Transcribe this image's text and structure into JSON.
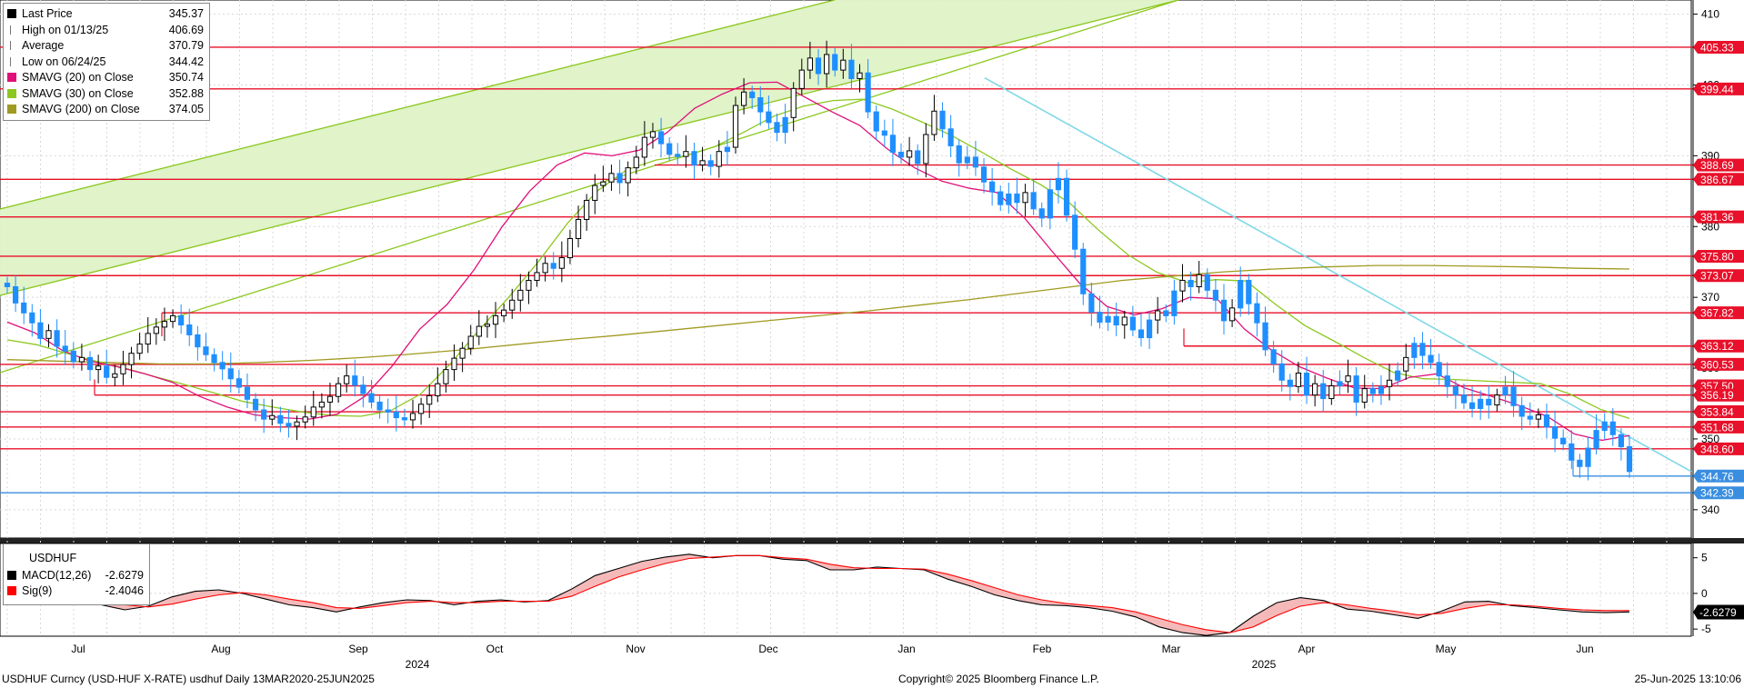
{
  "legend": {
    "items": [
      {
        "label": "Last Price",
        "value": "345.37",
        "swatch": "#000000",
        "marker": "box"
      },
      {
        "label": "High on 01/13/25",
        "value": "406.69",
        "swatch": "#777777",
        "marker": "high"
      },
      {
        "label": "Average",
        "value": "370.79",
        "swatch": "#777777",
        "marker": "avg"
      },
      {
        "label": "Low on 06/24/25",
        "value": "344.42",
        "swatch": "#777777",
        "marker": "low"
      },
      {
        "label": "SMAVG (20)  on Close",
        "value": "350.74",
        "swatch": "#e0107a",
        "marker": "box"
      },
      {
        "label": "SMAVG (30)  on Close",
        "value": "352.88",
        "swatch": "#8cc820",
        "marker": "box"
      },
      {
        "label": "SMAVG (200)  on Close",
        "value": "374.05",
        "swatch": "#a09a20",
        "marker": "box"
      }
    ]
  },
  "macd_legend": {
    "title": "USDHUF",
    "items": [
      {
        "label": "MACD(12,26)",
        "value": "-2.6279",
        "swatch": "#000000"
      },
      {
        "label": "Sig(9)",
        "value": "-2.4046",
        "swatch": "#ff0000"
      }
    ]
  },
  "footer": {
    "left": "USDHUF Curncy (USD-HUF X-RATE) usdhuf  Daily 13MAR2020-25JUN2025",
    "center": "Copyright© 2025 Bloomberg Finance L.P.",
    "right": "25-Jun-2025 13:10:06"
  },
  "colors": {
    "up": "#000000",
    "down": "#1f8fff",
    "hline": "#e8102a",
    "sma20": "#e0107a",
    "sma30": "#8cc820",
    "sma200": "#a09a20",
    "channel_fill": "#dff2c8",
    "channel_line": "#8cc820",
    "trend": "#7fd8e6",
    "support": "#3a8ee0",
    "macd": "#000000",
    "signal": "#ff0000"
  },
  "chart_data": {
    "type": "candlestick",
    "ylim": [
      336,
      412
    ],
    "y_ticks": [
      340,
      350,
      360,
      370,
      380,
      390,
      400,
      410
    ],
    "x_month_labels": [
      "Jul",
      "Aug",
      "Sep",
      "Oct",
      "Nov",
      "Dec",
      "Jan",
      "Feb",
      "Mar",
      "Apr",
      "May",
      "Jun"
    ],
    "x_year_labels": [
      "2024",
      "2025"
    ],
    "horizontal_levels": [
      {
        "value": 405.33,
        "label": "405.33",
        "color": "#e8102a"
      },
      {
        "value": 399.44,
        "label": "399.44",
        "color": "#e8102a"
      },
      {
        "value": 388.69,
        "label": "388.69",
        "color": "#e8102a"
      },
      {
        "value": 386.67,
        "label": "386.67",
        "color": "#e8102a"
      },
      {
        "value": 381.36,
        "label": "381.36",
        "color": "#e8102a"
      },
      {
        "value": 375.8,
        "label": "375.80",
        "color": "#e8102a"
      },
      {
        "value": 373.07,
        "label": "373.07",
        "color": "#e8102a"
      },
      {
        "value": 367.82,
        "label": "367.82",
        "color": "#e8102a"
      },
      {
        "value": 363.12,
        "label": "363.12",
        "color": "#e8102a"
      },
      {
        "value": 360.53,
        "label": "360.53",
        "color": "#e8102a"
      },
      {
        "value": 357.5,
        "label": "357.50",
        "color": "#e8102a"
      },
      {
        "value": 356.19,
        "label": "356.19",
        "color": "#e8102a"
      },
      {
        "value": 353.84,
        "label": "353.84",
        "color": "#e8102a"
      },
      {
        "value": 351.68,
        "label": "351.68",
        "color": "#e8102a"
      },
      {
        "value": 348.6,
        "label": "348.60",
        "color": "#e8102a"
      },
      {
        "value": 344.76,
        "label": "344.76",
        "color": "#3a8ee0"
      },
      {
        "value": 342.39,
        "label": "342.39",
        "color": "#3a8ee0"
      }
    ],
    "close_series": [
      371.5,
      369.2,
      367.8,
      366.4,
      364.2,
      365.3,
      363.1,
      362.4,
      360.9,
      361.5,
      359.8,
      360.3,
      358.7,
      359.2,
      360.5,
      362.1,
      363.4,
      364.9,
      365.8,
      366.6,
      367.4,
      366.1,
      364.7,
      363.0,
      361.9,
      360.8,
      359.9,
      358.5,
      357.3,
      355.6,
      354.1,
      352.8,
      353.3,
      352.2,
      351.8,
      352.4,
      353.1,
      354.5,
      355.2,
      356.0,
      357.8,
      358.9,
      357.6,
      356.4,
      355.2,
      354.1,
      353.8,
      353.0,
      352.7,
      353.6,
      354.9,
      356.1,
      357.8,
      359.8,
      361.4,
      362.8,
      364.5,
      365.9,
      366.2,
      367.4,
      368.2,
      369.6,
      371.0,
      372.4,
      373.5,
      374.8,
      374.1,
      375.6,
      378.3,
      381.0,
      383.7,
      385.8,
      386.3,
      387.5,
      386.2,
      388.3,
      389.8,
      392.6,
      393.4,
      391.7,
      390.2,
      389.9,
      390.6,
      388.7,
      389.3,
      388.5,
      390.6,
      391.2,
      397.1,
      399.0,
      398.2,
      396.2,
      394.7,
      393.3,
      395.4,
      399.5,
      402.1,
      403.8,
      401.6,
      404.3,
      402.1,
      403.5,
      400.9,
      401.7,
      396.2,
      393.5,
      392.9,
      390.5,
      389.8,
      390.7,
      388.9,
      393.0,
      396.3,
      393.8,
      391.4,
      389.0,
      389.8,
      388.4,
      386.3,
      384.9,
      383.1,
      384.6,
      383.4,
      384.8,
      382.5,
      381.2,
      385.2,
      386.8,
      381.6,
      376.8,
      370.5,
      367.9,
      366.5,
      367.3,
      366.1,
      367.2,
      365.4,
      364.3,
      366.8,
      368.1,
      367.4,
      370.9,
      372.4,
      371.5,
      373.2,
      371.0,
      369.6,
      366.7,
      368.5,
      372.4,
      369.1,
      366.4,
      362.6,
      360.6,
      358.3,
      357.4,
      359.3,
      356.2,
      357.8,
      355.7,
      357.5,
      358.1,
      358.9,
      355.2,
      357.1,
      356.4,
      357.4,
      358.3,
      359.6,
      361.5,
      363.5,
      361.8,
      360.8,
      358.9,
      357.4,
      356.2,
      355.1,
      354.3,
      355.6,
      354.8,
      356.2,
      357.3,
      354.7,
      353.2,
      352.8,
      353.4,
      351.7,
      350.1,
      349.3,
      347.0,
      346.1,
      348.7,
      351.2,
      352.4,
      350.6,
      348.9,
      345.4
    ],
    "candles_down_indices": [
      1,
      3,
      6,
      8,
      10,
      12,
      21,
      22,
      23,
      24,
      25,
      27,
      28,
      29,
      30,
      31,
      33,
      34,
      42,
      43,
      44,
      45,
      46,
      47,
      48,
      66,
      74,
      79,
      80,
      81,
      83,
      85,
      87,
      92,
      93,
      94,
      98,
      100,
      102,
      104,
      105,
      106,
      107,
      108,
      110,
      113,
      114,
      115,
      116,
      118,
      119,
      120,
      121,
      122,
      124,
      126,
      127,
      128,
      130,
      131,
      132,
      133,
      134,
      136,
      138,
      141,
      146,
      147,
      149,
      150,
      151,
      152,
      153,
      155,
      157,
      161,
      165,
      166,
      168,
      170,
      171,
      172,
      173,
      174,
      175,
      176,
      177,
      178,
      179,
      181,
      182,
      183,
      184,
      186,
      189,
      190,
      191,
      192,
      193,
      197,
      198,
      199,
      201,
      202,
      203,
      204,
      205,
      206,
      208,
      209,
      210,
      211
    ],
    "sma200_series": [
      361.2,
      361.0,
      360.8,
      360.6,
      360.6,
      360.8,
      361.1,
      361.5,
      362.0,
      362.6,
      363.3,
      364.0,
      364.6,
      365.3,
      366.0,
      366.7,
      367.4,
      368.1,
      368.9,
      369.7,
      370.6,
      371.5,
      372.4,
      373.0,
      373.6,
      374.0,
      374.3,
      374.5,
      374.5,
      374.4,
      374.3,
      374.1,
      374.0
    ],
    "sma20_series": [
      366.5,
      365.0,
      362.5,
      361.0,
      360.2,
      359.2,
      358.0,
      356.0,
      354.5,
      353.4,
      353.0,
      352.8,
      353.5,
      356.0,
      360.3,
      365.5,
      369.0,
      374.0,
      380.0,
      385.0,
      388.7,
      390.4,
      390.0,
      390.8,
      393.3,
      396.7,
      398.7,
      400.3,
      400.4,
      398.3,
      396.2,
      394.3,
      391.0,
      388.3,
      386.4,
      385.4,
      384.8,
      381.2,
      376.5,
      372.0,
      368.7,
      367.5,
      368.4,
      370.0,
      369.8,
      365.5,
      362.5,
      360.2,
      358.6,
      357.2,
      357.1,
      358.7,
      359.2,
      357.2,
      356.0,
      354.7,
      353.2,
      350.7,
      349.8,
      350.5
    ],
    "sma30_series": [
      364.0,
      363.3,
      362.1,
      361.0,
      360.0,
      358.8,
      357.7,
      356.5,
      355.3,
      354.5,
      353.8,
      353.3,
      353.2,
      354.0,
      356.3,
      360.5,
      365.4,
      370.0,
      375.0,
      380.5,
      385.0,
      388.0,
      389.4,
      390.0,
      391.3,
      393.4,
      395.6,
      397.0,
      397.8,
      398.0,
      396.6,
      394.8,
      392.9,
      390.6,
      388.2,
      386.0,
      383.4,
      379.5,
      376.0,
      373.5,
      372.1,
      372.5,
      372.3,
      369.0,
      366.0,
      363.8,
      361.5,
      359.4,
      358.5,
      358.4,
      358.2,
      358.0,
      357.8,
      356.3,
      354.2,
      352.9
    ],
    "macd_ylim": [
      -6,
      7
    ],
    "macd_ticks": [
      5,
      0,
      -5
    ],
    "macd_series": [
      -1.4,
      -1.0,
      -0.4,
      -0.6,
      -1.6,
      -2.3,
      -1.8,
      -0.5,
      0.3,
      0.5,
      0.0,
      -0.8,
      -1.6,
      -2.0,
      -2.6,
      -1.9,
      -1.3,
      -0.9,
      -1.0,
      -1.6,
      -1.1,
      -0.9,
      -1.2,
      -1.0,
      0.6,
      2.5,
      3.5,
      4.5,
      5.1,
      5.5,
      5.0,
      5.3,
      5.3,
      4.8,
      4.6,
      3.3,
      3.3,
      3.7,
      3.5,
      3.3,
      2.0,
      1.0,
      -0.2,
      -1.0,
      -1.6,
      -1.7,
      -2.0,
      -2.5,
      -3.3,
      -4.7,
      -5.5,
      -5.9,
      -5.5,
      -3.2,
      -1.3,
      -0.6,
      -1.0,
      -2.2,
      -2.5,
      -3.0,
      -3.5,
      -2.5,
      -1.2,
      -1.1,
      -1.7,
      -2.0,
      -2.3,
      -2.6,
      -2.7,
      -2.6
    ],
    "macd_signal_series": [
      -1.2,
      -1.2,
      -0.9,
      -0.8,
      -1.1,
      -1.6,
      -1.9,
      -1.5,
      -0.8,
      -0.2,
      0.1,
      -0.2,
      -0.8,
      -1.3,
      -2.0,
      -2.1,
      -1.7,
      -1.3,
      -1.1,
      -1.3,
      -1.3,
      -1.1,
      -1.1,
      -1.1,
      -0.4,
      1.0,
      2.3,
      3.3,
      4.2,
      4.9,
      5.1,
      5.3,
      5.3,
      5.0,
      4.8,
      4.1,
      3.6,
      3.5,
      3.5,
      3.4,
      2.7,
      1.8,
      0.8,
      -0.2,
      -0.9,
      -1.4,
      -1.7,
      -2.0,
      -2.6,
      -3.5,
      -4.4,
      -5.1,
      -5.5,
      -4.7,
      -3.1,
      -1.8,
      -1.3,
      -1.6,
      -2.1,
      -2.5,
      -3.0,
      -2.8,
      -2.1,
      -1.6,
      -1.6,
      -1.8,
      -2.1,
      -2.3,
      -2.4,
      -2.4
    ]
  }
}
